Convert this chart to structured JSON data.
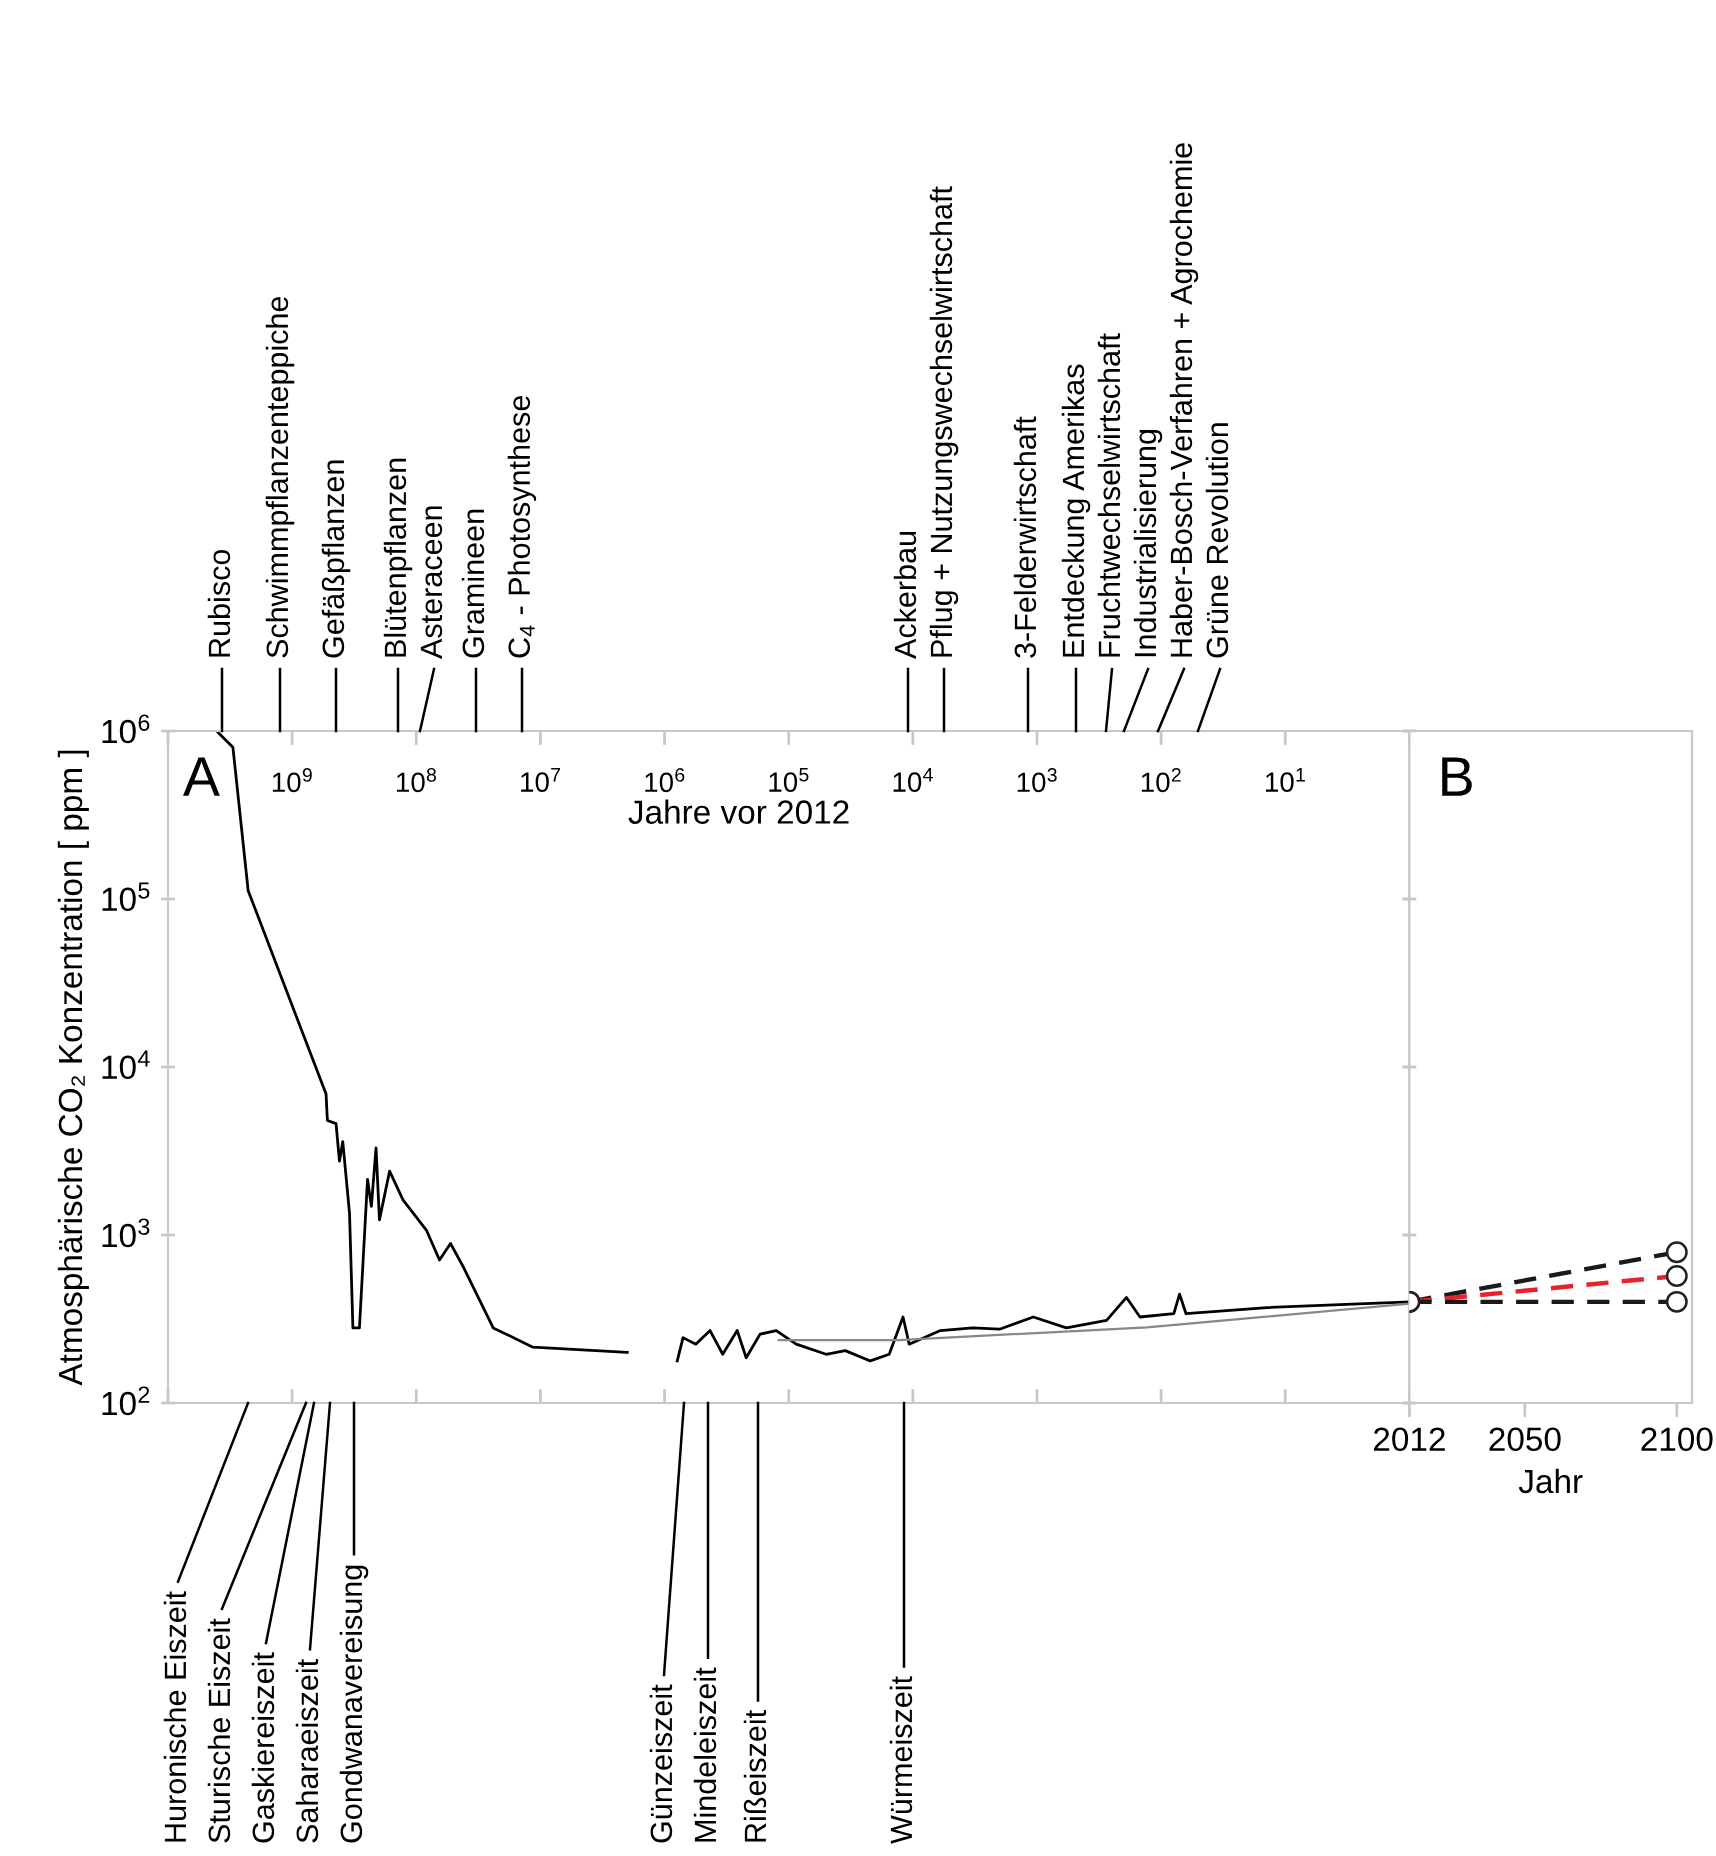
{
  "chart_data": [
    {
      "type": "line",
      "title": "A",
      "xlabel": "Jahre vor 2012",
      "ylabel": "Atmosphärische CO₂ Konzentration [ ppm ]",
      "log": "xy",
      "xlim": [
        10000000000,
        1
      ],
      "ylim": [
        100,
        1000000
      ],
      "xticks": [
        {
          "value": 10000000000,
          "label": null
        },
        {
          "value": 1000000000,
          "label": "10$^{9}$"
        },
        {
          "value": 100000000,
          "label": "10$^{8}$"
        },
        {
          "value": 10000000,
          "label": "10$^{7}$"
        },
        {
          "value": 1000000,
          "label": "10$^{6}$"
        },
        {
          "value": 100000,
          "label": "10$^{5}$"
        },
        {
          "value": 10000,
          "label": "10$^{4}$"
        },
        {
          "value": 1000,
          "label": "10$^{3}$"
        },
        {
          "value": 100,
          "label": "10$^{2}$"
        },
        {
          "value": 10,
          "label": "10$^{1}$"
        },
        {
          "value": 1,
          "label": null
        }
      ],
      "yticks": [
        {
          "value": 100,
          "label": "10$^{2}$"
        },
        {
          "value": 1000,
          "label": "10$^{3}$"
        },
        {
          "value": 10000,
          "label": "10$^{4}$"
        },
        {
          "value": 100000,
          "label": "10$^{5}$"
        },
        {
          "value": 1000000,
          "label": "10$^{6}$"
        }
      ],
      "grid": false,
      "legend": false,
      "marker": "none",
      "line_style": "solid",
      "series": [
        {
          "color": "#000000",
          "x": [
            3950000000,
            3000000000,
            2260000000,
            533000000,
            520000000,
            443000000,
            416000000,
            391000000,
            345000000,
            324000000,
            287000000,
            247000000,
            230000000,
            211000000,
            198000000,
            164000000,
            128000000,
            83000000,
            65000000,
            53000000,
            42000000,
            24000000,
            11500000,
            2000000,
            1500000,
            790000,
            710000,
            560000,
            430000,
            340000,
            260000,
            220000,
            170000,
            126000,
            87000,
            50000,
            35000,
            22000,
            15500,
            12000,
            10700,
            6000,
            3300,
            2000,
            1070,
            580,
            275,
            190,
            148,
            79,
            71,
            63,
            14,
            1
          ],
          "values": [
            980000,
            800000,
            112000,
            6900,
            4800,
            4600,
            2750,
            3600,
            1350,
            280,
            280,
            2140,
            1480,
            3300,
            1230,
            2400,
            1620,
            1070,
            710,
            890,
            650,
            280,
            215,
            200,
            null,
            178,
            245,
            224,
            270,
            195,
            270,
            186,
            257,
            270,
            224,
            195,
            205,
            178,
            195,
            325,
            224,
            270,
            280,
            275,
            325,
            280,
            310,
            425,
            325,
            340,
            445,
            340,
            370,
            400
          ]
        },
        {
          "color": "#888888",
          "x": [
            120000,
            13000,
            130,
            1
          ],
          "values": [
            237,
            237,
            282,
            390
          ]
        }
      ],
      "annotations": [
        "Rubisco",
        "Schwimmpflanzenteppiche",
        "Gefäßpflanzen",
        "Blütenpflanzen",
        "Asteraceen",
        "Gramineen",
        "C$_{4}$ - Photosynthese",
        "Ackerbau",
        "Pflug + Nutzungswechselwirtschaft",
        "3-Felderwirtschaft",
        "Entdeckung Amerikas",
        "Fruchtwechselwirtschaft",
        "Industrialisierung",
        "Haber-Bosch-Verfahren + Agrochemie",
        "Grüne Revolution",
        "Huronische Eiszeit",
        "Sturische Eiszeit",
        "Gaskiereiszeit",
        "Saharaeiszeit",
        "Gondwanavereisung",
        "Günzeiszeit",
        "Mindeleiszeit",
        "Rißeiszeit",
        "Würmeiszeit"
      ]
    },
    {
      "type": "line",
      "title": "B",
      "xlabel": "Jahr",
      "log": "y",
      "xlim": [
        2012,
        2105
      ],
      "ylim": [
        100,
        1000000
      ],
      "xticks": [
        2012,
        2050,
        2100
      ],
      "yticks": [
        {
          "value": 100,
          "label": null
        },
        {
          "value": 1000,
          "label": null
        },
        {
          "value": 10000,
          "label": null
        },
        {
          "value": 100000,
          "label": null
        },
        {
          "value": 1000000,
          "label": null
        }
      ],
      "tick_labels": "x",
      "grid": false,
      "legend": false,
      "marker": "circle",
      "line_style": "dashed",
      "series": [
        {
          "color": "#1a1a1a",
          "x": [
            2012,
            2100
          ],
          "values": [
            400,
            790
          ]
        },
        {
          "color": "#e8232a",
          "x": [
            2012,
            2100
          ],
          "values": [
            400,
            570
          ]
        },
        {
          "color": "#1a1a1a",
          "x": [
            2012,
            2100
          ],
          "values": [
            400,
            400
          ]
        }
      ]
    }
  ]
}
